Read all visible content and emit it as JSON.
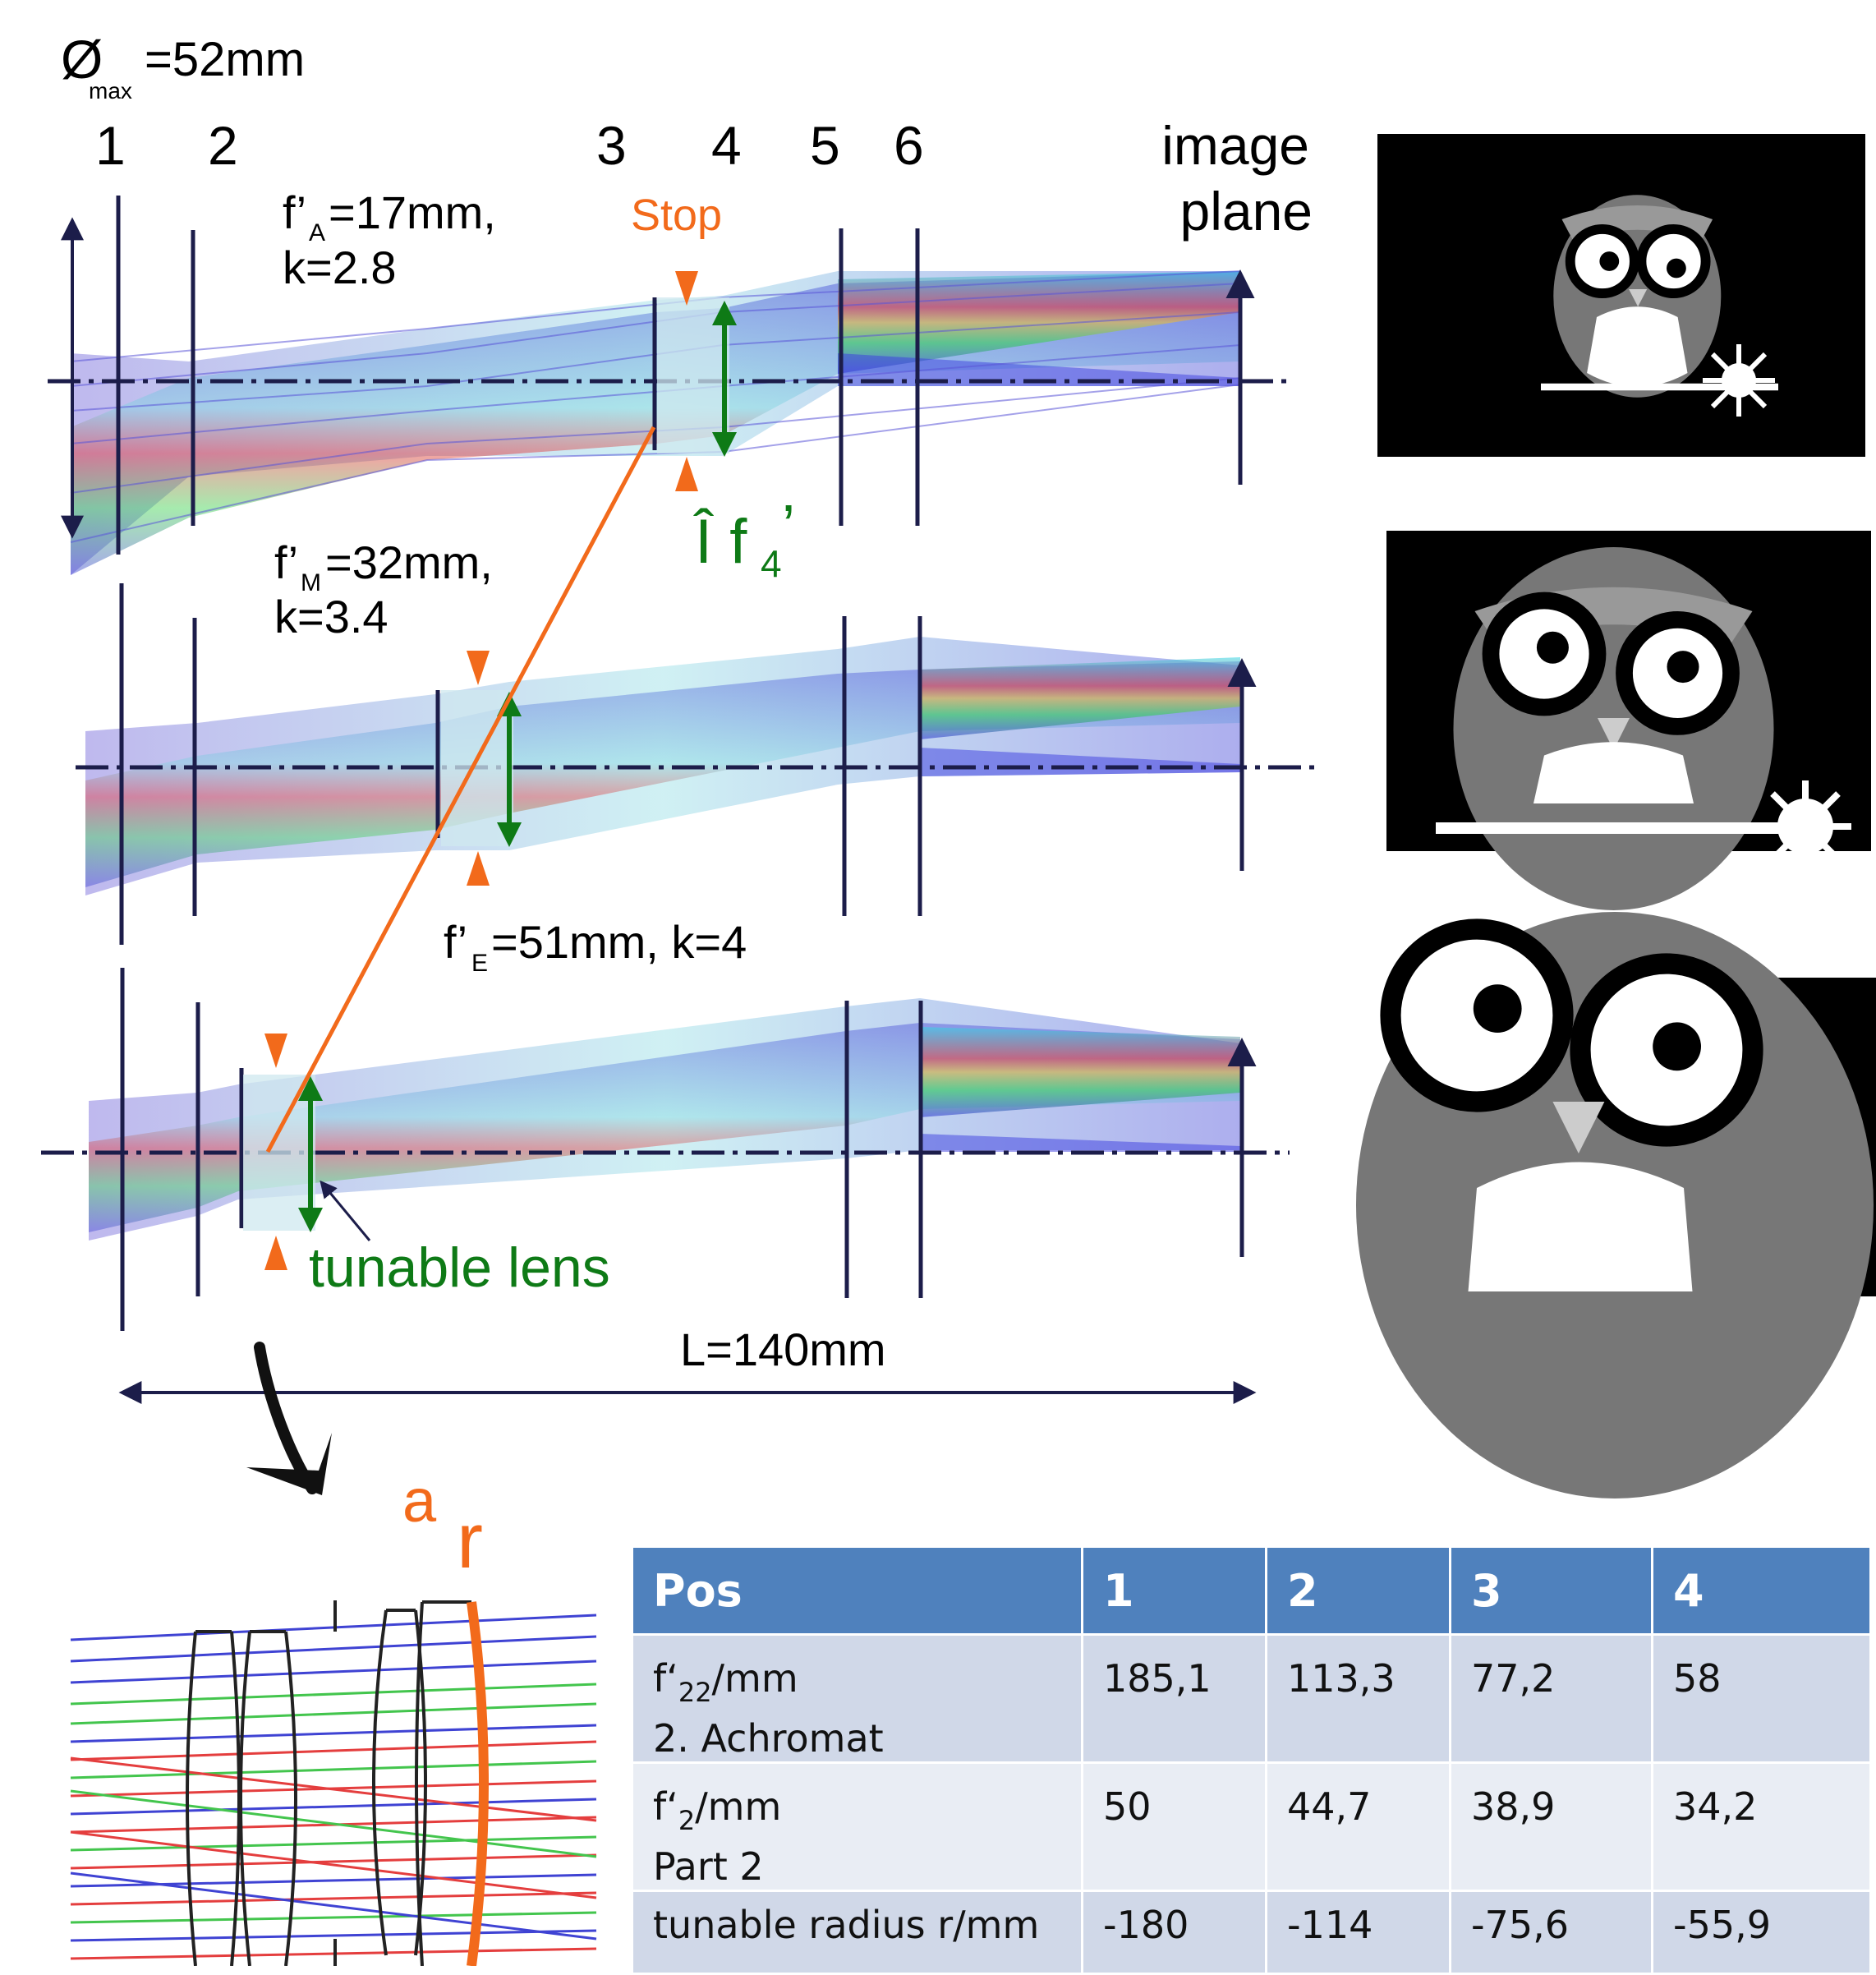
{
  "title": {
    "phi": "Ø",
    "sub": "max",
    "value": "=52mm"
  },
  "element_numbers": [
    "1",
    "2",
    "3",
    "4",
    "5",
    "6"
  ],
  "image_plane": [
    "image",
    "plane"
  ],
  "stop_label": "Stop",
  "delta_f4": {
    "main": "Î f",
    "sub": "4",
    "tail": "’"
  },
  "config_A": {
    "f": "f’",
    "sub": "A",
    "line1_rest": "=17mm,",
    "line2": "k=2.8"
  },
  "config_M": {
    "f": "f’",
    "sub": "M",
    "line1_rest": "=32mm,",
    "line2": "k=3.4"
  },
  "config_E": {
    "f": "f’",
    "sub": "E",
    "line1_rest": "=51mm, k=4"
  },
  "tunable_lens": "tunable lens",
  "length_label": "L=140mm",
  "detail_labels": {
    "a": "a",
    "r": "r"
  },
  "colors": {
    "orange": "#f26a1b",
    "green": "#0e7a16",
    "navy": "#1c1d4a",
    "table_header": "#4f81bd",
    "table_row_dark": "#d0d8e8",
    "table_row_light": "#e9edf4"
  },
  "icons": [
    "owl-image-wide",
    "owl-image-medium",
    "owl-image-tele"
  ],
  "table": {
    "headers": [
      "Pos",
      "1",
      "2",
      "3",
      "4"
    ],
    "rows": [
      {
        "label_pre": "f‘",
        "label_sub": "22",
        "label_post": "/mm",
        "label_line2": "2. Achromat",
        "values": [
          "185,1",
          "113,3",
          "77,2",
          "58"
        ]
      },
      {
        "label_pre": "f‘",
        "label_sub": "2",
        "label_post": "/mm",
        "label_line2": "Part 2",
        "values": [
          "50",
          "44,7",
          "38,9",
          "34,2"
        ]
      },
      {
        "label_pre": "tunable  radius r/mm",
        "label_sub": "",
        "label_post": "",
        "label_line2": "",
        "values": [
          "-180",
          "-114",
          "-75,6",
          "-55,9"
        ]
      }
    ]
  }
}
